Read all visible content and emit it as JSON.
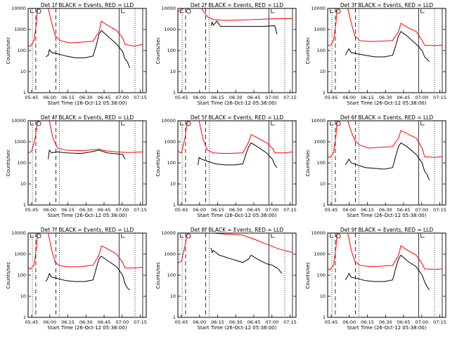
{
  "chart_data": {
    "type": "line",
    "x_ticks": [
      "05:45",
      "06:00",
      "06:15",
      "06:30",
      "06:45",
      "07:00",
      "07:15"
    ],
    "y_ticks": [
      "1",
      "10",
      "100",
      "1000",
      "10000"
    ],
    "ylabel": "Counts/sec",
    "xlabel": "Start Time (26-Oct-12 05:38:00)",
    "scale": "log",
    "ylim": [
      1,
      10000
    ],
    "colors": {
      "events": "#000000",
      "lld": "#ff0000"
    },
    "panels": [
      {
        "title": "Det 1f BLACK = Events, RED = LLD",
        "red": [
          [
            0,
            170
          ],
          [
            2,
            160
          ],
          [
            5,
            300
          ],
          [
            7,
            2000
          ],
          [
            8,
            10000
          ],
          [
            17,
            10000
          ],
          [
            20,
            2000
          ],
          [
            23,
            500
          ],
          [
            27,
            300
          ],
          [
            35,
            230
          ],
          [
            45,
            250
          ],
          [
            55,
            280
          ],
          [
            60,
            800
          ],
          [
            62,
            2500
          ],
          [
            67,
            1600
          ],
          [
            75,
            900
          ],
          [
            80,
            400
          ],
          [
            82,
            200
          ],
          [
            90,
            160
          ],
          [
            97,
            200
          ]
        ],
        "black": [
          [
            15,
            50
          ],
          [
            17,
            60
          ],
          [
            18,
            110
          ],
          [
            20,
            80
          ],
          [
            25,
            70
          ],
          [
            32,
            55
          ],
          [
            40,
            45
          ],
          [
            48,
            45
          ],
          [
            55,
            55
          ],
          [
            58,
            200
          ],
          [
            60,
            600
          ],
          [
            62,
            900
          ],
          [
            67,
            500
          ],
          [
            75,
            200
          ],
          [
            80,
            90
          ],
          [
            82,
            40
          ],
          [
            84,
            30
          ],
          [
            86,
            15
          ]
        ]
      },
      {
        "title": "Det 2f BLACK = Events, RED = LLD",
        "red": [
          [
            0,
            7000
          ],
          [
            5,
            10000
          ],
          [
            20,
            10000
          ],
          [
            25,
            4000
          ],
          [
            30,
            3000
          ],
          [
            40,
            2700
          ],
          [
            60,
            2900
          ],
          [
            80,
            3200
          ],
          [
            97,
            3300
          ]
        ],
        "black": [
          [
            28,
            1500
          ],
          [
            29,
            2200
          ],
          [
            30,
            1600
          ],
          [
            33,
            2500
          ],
          [
            36,
            1400
          ],
          [
            50,
            1400
          ],
          [
            70,
            1400
          ],
          [
            82,
            1500
          ],
          [
            84,
            600
          ]
        ]
      },
      {
        "title": "Det 3f BLACK = Events, RED = LLD",
        "red": [
          [
            0,
            180
          ],
          [
            2,
            170
          ],
          [
            5,
            300
          ],
          [
            7,
            2000
          ],
          [
            8,
            10000
          ],
          [
            17,
            10000
          ],
          [
            20,
            2000
          ],
          [
            23,
            500
          ],
          [
            27,
            300
          ],
          [
            35,
            270
          ],
          [
            45,
            280
          ],
          [
            55,
            300
          ],
          [
            60,
            800
          ],
          [
            62,
            2000
          ],
          [
            67,
            1300
          ],
          [
            75,
            800
          ],
          [
            80,
            300
          ],
          [
            82,
            180
          ],
          [
            90,
            170
          ],
          [
            97,
            180
          ]
        ],
        "black": [
          [
            15,
            60
          ],
          [
            17,
            100
          ],
          [
            18,
            120
          ],
          [
            20,
            80
          ],
          [
            25,
            70
          ],
          [
            32,
            60
          ],
          [
            40,
            50
          ],
          [
            48,
            50
          ],
          [
            55,
            60
          ],
          [
            58,
            200
          ],
          [
            60,
            500
          ],
          [
            62,
            800
          ],
          [
            67,
            500
          ],
          [
            75,
            200
          ],
          [
            80,
            100
          ],
          [
            82,
            50
          ],
          [
            84,
            40
          ],
          [
            86,
            30
          ]
        ]
      },
      {
        "title": "Det 4f BLACK = Events, RED = LLD",
        "red": [
          [
            0,
            300
          ],
          [
            3,
            350
          ],
          [
            6,
            1500
          ],
          [
            8,
            10000
          ],
          [
            18,
            10000
          ],
          [
            21,
            1500
          ],
          [
            25,
            500
          ],
          [
            32,
            400
          ],
          [
            45,
            380
          ],
          [
            55,
            420
          ],
          [
            60,
            450
          ],
          [
            65,
            380
          ],
          [
            75,
            330
          ],
          [
            85,
            310
          ],
          [
            97,
            330
          ]
        ],
        "black": [
          [
            17,
            150
          ],
          [
            18,
            400
          ],
          [
            20,
            300
          ],
          [
            25,
            340
          ],
          [
            32,
            300
          ],
          [
            45,
            280
          ],
          [
            55,
            350
          ],
          [
            60,
            400
          ],
          [
            67,
            300
          ],
          [
            75,
            270
          ],
          [
            80,
            250
          ],
          [
            82,
            150
          ]
        ]
      },
      {
        "title": "Det 5f BLACK = Events, RED = LLD",
        "red": [
          [
            0,
            350
          ],
          [
            3,
            300
          ],
          [
            6,
            1500
          ],
          [
            8,
            10000
          ],
          [
            18,
            10000
          ],
          [
            21,
            1500
          ],
          [
            25,
            400
          ],
          [
            30,
            300
          ],
          [
            40,
            280
          ],
          [
            55,
            300
          ],
          [
            60,
            1000
          ],
          [
            62,
            2200
          ],
          [
            67,
            1600
          ],
          [
            75,
            900
          ],
          [
            80,
            500
          ],
          [
            82,
            300
          ],
          [
            90,
            300
          ],
          [
            97,
            330
          ]
        ],
        "black": [
          [
            17,
            80
          ],
          [
            18,
            180
          ],
          [
            20,
            150
          ],
          [
            25,
            120
          ],
          [
            32,
            90
          ],
          [
            40,
            80
          ],
          [
            48,
            80
          ],
          [
            55,
            90
          ],
          [
            58,
            300
          ],
          [
            60,
            600
          ],
          [
            62,
            900
          ],
          [
            67,
            600
          ],
          [
            75,
            300
          ],
          [
            80,
            150
          ],
          [
            82,
            80
          ],
          [
            84,
            60
          ]
        ]
      },
      {
        "title": "Det 6f BLACK = Events, RED = LLD",
        "red": [
          [
            0,
            200
          ],
          [
            2,
            180
          ],
          [
            5,
            300
          ],
          [
            7,
            2000
          ],
          [
            8,
            10000
          ],
          [
            17,
            10000
          ],
          [
            20,
            3000
          ],
          [
            23,
            1200
          ],
          [
            27,
            700
          ],
          [
            35,
            500
          ],
          [
            45,
            550
          ],
          [
            55,
            600
          ],
          [
            60,
            1500
          ],
          [
            62,
            3500
          ],
          [
            67,
            2500
          ],
          [
            75,
            1500
          ],
          [
            80,
            500
          ],
          [
            82,
            200
          ],
          [
            90,
            180
          ],
          [
            97,
            200
          ]
        ],
        "black": [
          [
            15,
            80
          ],
          [
            17,
            120
          ],
          [
            18,
            150
          ],
          [
            20,
            100
          ],
          [
            25,
            80
          ],
          [
            32,
            60
          ],
          [
            40,
            55
          ],
          [
            48,
            50
          ],
          [
            55,
            60
          ],
          [
            58,
            250
          ],
          [
            60,
            600
          ],
          [
            62,
            900
          ],
          [
            67,
            600
          ],
          [
            75,
            250
          ],
          [
            80,
            100
          ],
          [
            82,
            40
          ],
          [
            84,
            30
          ],
          [
            86,
            15
          ]
        ]
      },
      {
        "title": "Det 7f BLACK = Events, RED = LLD",
        "red": [
          [
            0,
            220
          ],
          [
            2,
            200
          ],
          [
            5,
            300
          ],
          [
            7,
            2000
          ],
          [
            8,
            10000
          ],
          [
            17,
            10000
          ],
          [
            20,
            1500
          ],
          [
            23,
            400
          ],
          [
            27,
            280
          ],
          [
            35,
            250
          ],
          [
            45,
            260
          ],
          [
            55,
            300
          ],
          [
            60,
            900
          ],
          [
            62,
            2500
          ],
          [
            67,
            1800
          ],
          [
            75,
            1000
          ],
          [
            80,
            400
          ],
          [
            82,
            220
          ],
          [
            90,
            220
          ],
          [
            97,
            240
          ]
        ],
        "black": [
          [
            15,
            50
          ],
          [
            17,
            80
          ],
          [
            18,
            120
          ],
          [
            20,
            80
          ],
          [
            25,
            70
          ],
          [
            32,
            55
          ],
          [
            40,
            50
          ],
          [
            48,
            50
          ],
          [
            55,
            60
          ],
          [
            58,
            250
          ],
          [
            60,
            600
          ],
          [
            62,
            800
          ],
          [
            67,
            500
          ],
          [
            75,
            250
          ],
          [
            80,
            100
          ],
          [
            82,
            40
          ],
          [
            84,
            25
          ],
          [
            86,
            20
          ]
        ]
      },
      {
        "title": "Det 8f BLACK = Events, RED = LLD",
        "red": [
          [
            0,
            400
          ],
          [
            3,
            450
          ],
          [
            6,
            2500
          ],
          [
            8,
            10000
          ],
          [
            18,
            10000
          ],
          [
            20,
            10000
          ],
          [
            30,
            10000
          ],
          [
            40,
            9000
          ],
          [
            55,
            8000
          ],
          [
            65,
            5000
          ],
          [
            75,
            3000
          ],
          [
            85,
            1800
          ],
          [
            97,
            1200
          ]
        ],
        "black": [
          [
            28,
            2000
          ],
          [
            29,
            1200
          ],
          [
            30,
            1500
          ],
          [
            35,
            900
          ],
          [
            45,
            600
          ],
          [
            55,
            400
          ],
          [
            60,
            600
          ],
          [
            62,
            900
          ],
          [
            67,
            600
          ],
          [
            75,
            350
          ],
          [
            80,
            300
          ],
          [
            85,
            200
          ],
          [
            88,
            120
          ]
        ]
      },
      {
        "title": "Det 9f BLACK = Events, RED = LLD",
        "red": [
          [
            0,
            200
          ],
          [
            2,
            180
          ],
          [
            5,
            300
          ],
          [
            7,
            2000
          ],
          [
            8,
            10000
          ],
          [
            17,
            10000
          ],
          [
            20,
            1500
          ],
          [
            23,
            450
          ],
          [
            27,
            300
          ],
          [
            35,
            260
          ],
          [
            45,
            270
          ],
          [
            55,
            290
          ],
          [
            60,
            900
          ],
          [
            62,
            2500
          ],
          [
            67,
            1600
          ],
          [
            75,
            900
          ],
          [
            80,
            350
          ],
          [
            82,
            200
          ],
          [
            90,
            190
          ],
          [
            97,
            200
          ]
        ],
        "black": [
          [
            15,
            60
          ],
          [
            17,
            90
          ],
          [
            18,
            120
          ],
          [
            20,
            80
          ],
          [
            25,
            70
          ],
          [
            32,
            55
          ],
          [
            40,
            50
          ],
          [
            48,
            50
          ],
          [
            55,
            60
          ],
          [
            58,
            250
          ],
          [
            60,
            600
          ],
          [
            62,
            900
          ],
          [
            67,
            500
          ],
          [
            75,
            250
          ],
          [
            80,
            100
          ],
          [
            82,
            50
          ],
          [
            84,
            30
          ],
          [
            86,
            20
          ]
        ]
      }
    ]
  }
}
